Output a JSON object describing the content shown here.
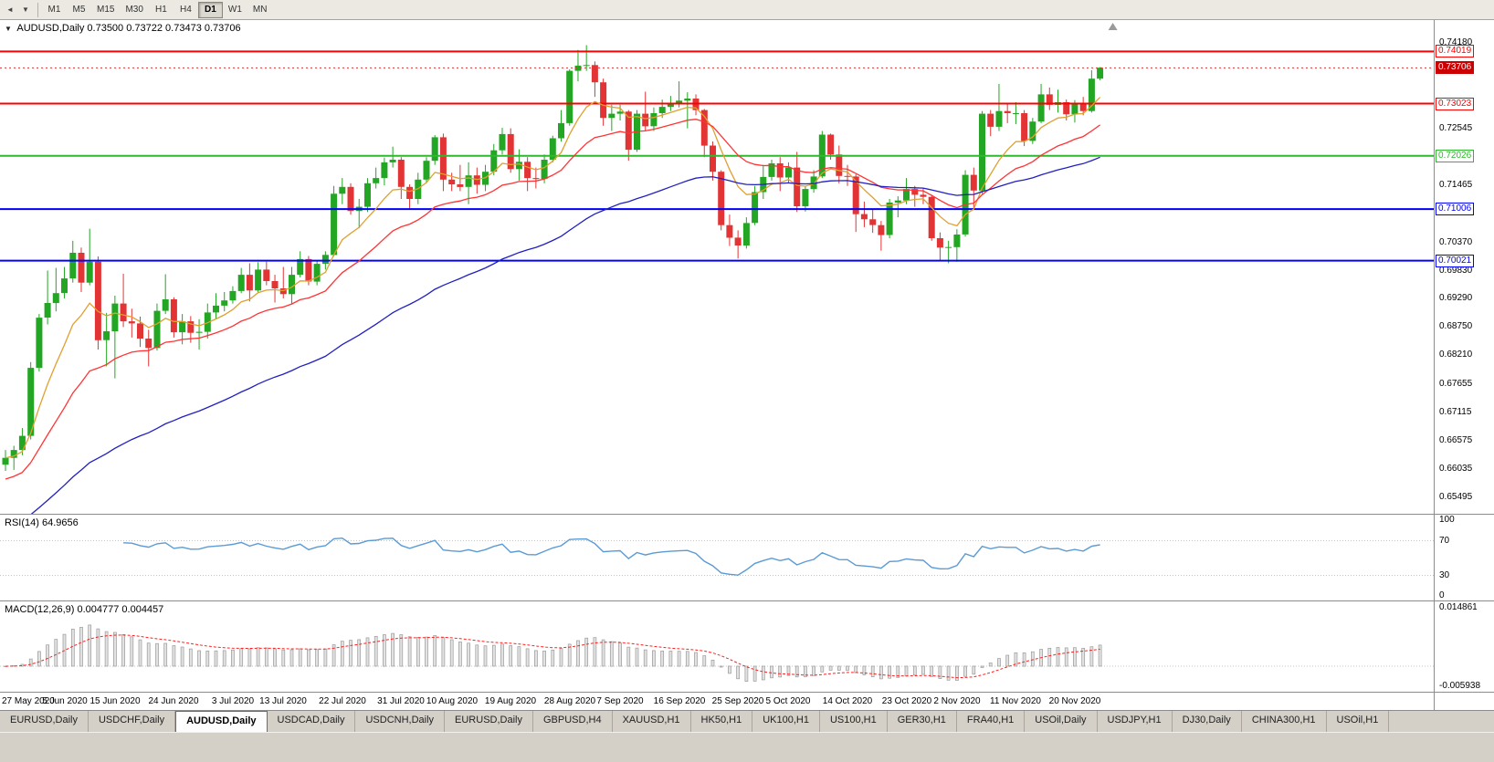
{
  "toolbar": {
    "icons": [
      {
        "name": "chart-scroll-left-icon",
        "glyph": "◄"
      },
      {
        "name": "chart-dropdown-icon",
        "glyph": "▼"
      }
    ],
    "timeframes": [
      "M1",
      "M5",
      "M15",
      "M30",
      "H1",
      "H4",
      "D1",
      "W1",
      "MN"
    ],
    "selected_timeframe": "D1"
  },
  "chart": {
    "collapse_glyph": "▼",
    "title": "AUDUSD,Daily",
    "ohlc": "0.73500 0.73722 0.73473 0.73706",
    "bid": 0.73706
  },
  "price_axis": {
    "range": [
      0.6518,
      0.7462
    ],
    "ticks": [
      0.7418,
      0.72545,
      0.71465,
      0.7037,
      0.6983,
      0.6929,
      0.6875,
      0.6821,
      0.67655,
      0.67115,
      0.66575,
      0.66035,
      0.65495
    ],
    "badges": [
      {
        "value": "0.74019",
        "price": 0.74019,
        "color": "#ff0000",
        "type": "line"
      },
      {
        "value": "0.73706",
        "price": 0.73706,
        "color": "#cc0000",
        "type": "current"
      },
      {
        "value": "0.73023",
        "price": 0.73023,
        "color": "#ff0000",
        "type": "line"
      },
      {
        "value": "0.72026",
        "price": 0.72026,
        "color": "#2eb82e",
        "type": "line"
      },
      {
        "value": "0.71006",
        "price": 0.71006,
        "color": "#0000ff",
        "type": "line"
      },
      {
        "value": "0.70021",
        "price": 0.70021,
        "color": "#0000ff",
        "type": "line"
      }
    ]
  },
  "hlines": [
    {
      "price": 0.74019,
      "color": "#ff0000",
      "width": 2
    },
    {
      "price": 0.73023,
      "color": "#ff0000",
      "width": 2
    },
    {
      "price": 0.72026,
      "color": "#2eb82e",
      "width": 2
    },
    {
      "price": 0.71006,
      "color": "#0000ff",
      "width": 2
    },
    {
      "price": 0.70021,
      "color": "#0000ff",
      "width": 2
    }
  ],
  "chart_data": {
    "type": "candlestick",
    "symbol": "AUDUSD",
    "timeframe": "Daily",
    "colors": {
      "up": "#23a623",
      "down": "#e23434"
    },
    "ma": [
      {
        "period": 8,
        "color": "#e0a030",
        "seed": null
      },
      {
        "period": 20,
        "color": "#ff3333",
        "seed": 0.658
      },
      {
        "period": 55,
        "color": "#2020c0",
        "seed": 0.649
      }
    ],
    "x_labels": [
      {
        "t": "27 May 2020",
        "i": 0
      },
      {
        "t": "5 Jun 2020",
        "i": 7
      },
      {
        "t": "15 Jun 2020",
        "i": 13
      },
      {
        "t": "24 Jun 2020",
        "i": 20
      },
      {
        "t": "3 Jul 2020",
        "i": 27
      },
      {
        "t": "13 Jul 2020",
        "i": 33
      },
      {
        "t": "22 Jul 2020",
        "i": 40
      },
      {
        "t": "31 Jul 2020",
        "i": 47
      },
      {
        "t": "10 Aug 2020",
        "i": 53
      },
      {
        "t": "19 Aug 2020",
        "i": 60
      },
      {
        "t": "28 Aug 2020",
        "i": 67
      },
      {
        "t": "7 Sep 2020",
        "i": 73
      },
      {
        "t": "16 Sep 2020",
        "i": 80
      },
      {
        "t": "25 Sep 2020",
        "i": 87
      },
      {
        "t": "5 Oct 2020",
        "i": 93
      },
      {
        "t": "14 Oct 2020",
        "i": 100
      },
      {
        "t": "23 Oct 2020",
        "i": 107
      },
      {
        "t": "2 Nov 2020",
        "i": 113
      },
      {
        "t": "11 Nov 2020",
        "i": 120
      },
      {
        "t": "20 Nov 2020",
        "i": 127
      }
    ],
    "candles": [
      [
        0.6612,
        0.664,
        0.66,
        0.6625
      ],
      [
        0.6625,
        0.6648,
        0.6602,
        0.664
      ],
      [
        0.664,
        0.6682,
        0.663,
        0.6667
      ],
      [
        0.6667,
        0.6808,
        0.666,
        0.6797
      ],
      [
        0.6797,
        0.69,
        0.679,
        0.6893
      ],
      [
        0.6893,
        0.6983,
        0.688,
        0.6921
      ],
      [
        0.6921,
        0.6988,
        0.6905,
        0.694
      ],
      [
        0.694,
        0.699,
        0.693,
        0.6968
      ],
      [
        0.6968,
        0.704,
        0.696,
        0.7017
      ],
      [
        0.7017,
        0.7027,
        0.6942,
        0.696
      ],
      [
        0.696,
        0.7063,
        0.6955,
        0.7
      ],
      [
        0.7,
        0.701,
        0.6832,
        0.685
      ],
      [
        0.685,
        0.6902,
        0.68,
        0.6867
      ],
      [
        0.6867,
        0.6935,
        0.6777,
        0.692
      ],
      [
        0.692,
        0.6977,
        0.6875,
        0.6886
      ],
      [
        0.6886,
        0.691,
        0.6855,
        0.6882
      ],
      [
        0.6882,
        0.6895,
        0.6837,
        0.6853
      ],
      [
        0.6853,
        0.687,
        0.68,
        0.6835
      ],
      [
        0.6835,
        0.692,
        0.683,
        0.6906
      ],
      [
        0.6906,
        0.6976,
        0.69,
        0.6928
      ],
      [
        0.6928,
        0.6932,
        0.6855,
        0.6865
      ],
      [
        0.6865,
        0.69,
        0.6842,
        0.6886
      ],
      [
        0.6886,
        0.6896,
        0.6845,
        0.6864
      ],
      [
        0.6864,
        0.689,
        0.6832,
        0.6866
      ],
      [
        0.6866,
        0.692,
        0.6853,
        0.6903
      ],
      [
        0.6903,
        0.694,
        0.689,
        0.6916
      ],
      [
        0.6916,
        0.6942,
        0.6905,
        0.6926
      ],
      [
        0.6926,
        0.6953,
        0.692,
        0.6944
      ],
      [
        0.6944,
        0.6988,
        0.694,
        0.6975
      ],
      [
        0.6975,
        0.6997,
        0.6924,
        0.6945
      ],
      [
        0.6945,
        0.6999,
        0.694,
        0.6985
      ],
      [
        0.6985,
        0.7,
        0.6955,
        0.6963
      ],
      [
        0.6963,
        0.6975,
        0.6922,
        0.6949
      ],
      [
        0.6949,
        0.699,
        0.693,
        0.6938
      ],
      [
        0.6938,
        0.699,
        0.692,
        0.6975
      ],
      [
        0.6975,
        0.702,
        0.697,
        0.7005
      ],
      [
        0.7005,
        0.7011,
        0.6955,
        0.6962
      ],
      [
        0.6962,
        0.7002,
        0.6955,
        0.6996
      ],
      [
        0.6996,
        0.702,
        0.6985,
        0.7013
      ],
      [
        0.7013,
        0.7145,
        0.701,
        0.713
      ],
      [
        0.713,
        0.716,
        0.711,
        0.7143
      ],
      [
        0.7143,
        0.715,
        0.709,
        0.7097
      ],
      [
        0.7097,
        0.712,
        0.7064,
        0.7105
      ],
      [
        0.7105,
        0.716,
        0.7095,
        0.715
      ],
      [
        0.715,
        0.718,
        0.714,
        0.716
      ],
      [
        0.716,
        0.7199,
        0.7146,
        0.719
      ],
      [
        0.719,
        0.722,
        0.718,
        0.7195
      ],
      [
        0.7195,
        0.72,
        0.712,
        0.7143
      ],
      [
        0.7143,
        0.7148,
        0.71,
        0.712
      ],
      [
        0.712,
        0.717,
        0.711,
        0.7157
      ],
      [
        0.7157,
        0.72,
        0.715,
        0.7193
      ],
      [
        0.7193,
        0.7242,
        0.7185,
        0.7238
      ],
      [
        0.7238,
        0.7245,
        0.7135,
        0.7157
      ],
      [
        0.7157,
        0.717,
        0.7135,
        0.7148
      ],
      [
        0.7148,
        0.7185,
        0.7135,
        0.7143
      ],
      [
        0.7143,
        0.719,
        0.711,
        0.7165
      ],
      [
        0.7165,
        0.718,
        0.713,
        0.7147
      ],
      [
        0.7147,
        0.7185,
        0.7135,
        0.7172
      ],
      [
        0.7172,
        0.7225,
        0.7165,
        0.7213
      ],
      [
        0.7213,
        0.7256,
        0.7205,
        0.7244
      ],
      [
        0.7244,
        0.7255,
        0.717,
        0.7177
      ],
      [
        0.7177,
        0.7215,
        0.7155,
        0.7191
      ],
      [
        0.7191,
        0.72,
        0.7135,
        0.716
      ],
      [
        0.716,
        0.718,
        0.714,
        0.7158
      ],
      [
        0.7158,
        0.7205,
        0.715,
        0.7195
      ],
      [
        0.7195,
        0.7241,
        0.719,
        0.7236
      ],
      [
        0.7236,
        0.729,
        0.723,
        0.7265
      ],
      [
        0.7265,
        0.7368,
        0.726,
        0.7365
      ],
      [
        0.7365,
        0.7405,
        0.7345,
        0.7375
      ],
      [
        0.7375,
        0.7414,
        0.7365,
        0.7376
      ],
      [
        0.7376,
        0.7383,
        0.7315,
        0.7343
      ],
      [
        0.7343,
        0.735,
        0.726,
        0.7275
      ],
      [
        0.7275,
        0.73,
        0.725,
        0.7283
      ],
      [
        0.7283,
        0.73,
        0.727,
        0.7287
      ],
      [
        0.7287,
        0.729,
        0.7193,
        0.7214
      ],
      [
        0.7214,
        0.729,
        0.721,
        0.7283
      ],
      [
        0.7283,
        0.7325,
        0.725,
        0.7259
      ],
      [
        0.7259,
        0.7295,
        0.725,
        0.7284
      ],
      [
        0.7284,
        0.731,
        0.7275,
        0.7296
      ],
      [
        0.7296,
        0.7317,
        0.7288,
        0.7303
      ],
      [
        0.7303,
        0.7345,
        0.7295,
        0.7308
      ],
      [
        0.7308,
        0.7324,
        0.7255,
        0.7312
      ],
      [
        0.7312,
        0.732,
        0.728,
        0.729
      ],
      [
        0.729,
        0.7292,
        0.72,
        0.7222
      ],
      [
        0.7222,
        0.723,
        0.7155,
        0.7172
      ],
      [
        0.7172,
        0.7175,
        0.706,
        0.707
      ],
      [
        0.707,
        0.709,
        0.703,
        0.7046
      ],
      [
        0.7046,
        0.706,
        0.7006,
        0.7031
      ],
      [
        0.7031,
        0.7085,
        0.7025,
        0.7074
      ],
      [
        0.7074,
        0.7145,
        0.707,
        0.7133
      ],
      [
        0.7133,
        0.7185,
        0.712,
        0.7162
      ],
      [
        0.7162,
        0.7195,
        0.7155,
        0.7188
      ],
      [
        0.7188,
        0.72,
        0.7135,
        0.7161
      ],
      [
        0.7161,
        0.719,
        0.715,
        0.718
      ],
      [
        0.718,
        0.721,
        0.7095,
        0.7106
      ],
      [
        0.7106,
        0.7145,
        0.7096,
        0.7139
      ],
      [
        0.7139,
        0.7175,
        0.7132,
        0.7163
      ],
      [
        0.7163,
        0.725,
        0.716,
        0.7243
      ],
      [
        0.7243,
        0.7245,
        0.7195,
        0.7205
      ],
      [
        0.7205,
        0.7222,
        0.715,
        0.7164
      ],
      [
        0.7164,
        0.7185,
        0.7145,
        0.7163
      ],
      [
        0.7163,
        0.7167,
        0.7057,
        0.7091
      ],
      [
        0.7091,
        0.7115,
        0.7066,
        0.7081
      ],
      [
        0.7081,
        0.7099,
        0.7055,
        0.707
      ],
      [
        0.707,
        0.7078,
        0.7021,
        0.7051
      ],
      [
        0.7051,
        0.712,
        0.7045,
        0.7113
      ],
      [
        0.7113,
        0.7125,
        0.7085,
        0.7117
      ],
      [
        0.7117,
        0.716,
        0.711,
        0.7139
      ],
      [
        0.7139,
        0.7145,
        0.7105,
        0.7128
      ],
      [
        0.7128,
        0.714,
        0.711,
        0.7124
      ],
      [
        0.7124,
        0.7128,
        0.704,
        0.7045
      ],
      [
        0.7045,
        0.7056,
        0.7002,
        0.7027
      ],
      [
        0.7027,
        0.704,
        0.6997,
        0.7028
      ],
      [
        0.7028,
        0.7062,
        0.7,
        0.7052
      ],
      [
        0.7052,
        0.7175,
        0.7048,
        0.7166
      ],
      [
        0.7166,
        0.718,
        0.71,
        0.7136
      ],
      [
        0.7136,
        0.7288,
        0.713,
        0.7283
      ],
      [
        0.7283,
        0.729,
        0.724,
        0.7258
      ],
      [
        0.7258,
        0.734,
        0.725,
        0.7288
      ],
      [
        0.7288,
        0.7302,
        0.7265,
        0.7284
      ],
      [
        0.7284,
        0.7305,
        0.7263,
        0.7284
      ],
      [
        0.7284,
        0.729,
        0.7221,
        0.7231
      ],
      [
        0.7231,
        0.7275,
        0.7225,
        0.7268
      ],
      [
        0.7268,
        0.734,
        0.7265,
        0.732
      ],
      [
        0.732,
        0.7333,
        0.729,
        0.73
      ],
      [
        0.73,
        0.7329,
        0.7285,
        0.7305
      ],
      [
        0.7305,
        0.731,
        0.727,
        0.7282
      ],
      [
        0.7282,
        0.7309,
        0.7266,
        0.7302
      ],
      [
        0.7302,
        0.7315,
        0.728,
        0.7288
      ],
      [
        0.7288,
        0.7366,
        0.7285,
        0.735
      ],
      [
        0.735,
        0.7372,
        0.7347,
        0.7371
      ]
    ]
  },
  "rsi": {
    "label": "RSI(14) 64.9656",
    "period": 14,
    "current": 64.9656,
    "levels": [
      100,
      70,
      30,
      0
    ],
    "line_color": "#5b9bd5"
  },
  "macd": {
    "label": "MACD(12,26,9) 0.004777 0.004457",
    "fast": 12,
    "slow": 26,
    "signal": 9,
    "current_macd": 0.004777,
    "current_signal": 0.004457,
    "ylim": [
      -0.0062,
      0.0152
    ],
    "axis_labels": [
      "0.014861",
      "-0.005938"
    ],
    "bar_fill": "#e2e2e2",
    "bar_stroke": "#9a9a9a",
    "signal_color": "#ff2020"
  },
  "tabs": {
    "selected": 2,
    "items": [
      "EURUSD,Daily",
      "USDCHF,Daily",
      "AUDUSD,Daily",
      "USDCAD,Daily",
      "USDCNH,Daily",
      "EURUSD,Daily",
      "GBPUSD,H4",
      "XAUUSD,H1",
      "HK50,H1",
      "UK100,H1",
      "US100,H1",
      "GER30,H1",
      "FRA40,H1",
      "USOil,Daily",
      "USDJPY,H1",
      "DJ30,Daily",
      "CHINA300,H1",
      "USOil,H1"
    ]
  }
}
